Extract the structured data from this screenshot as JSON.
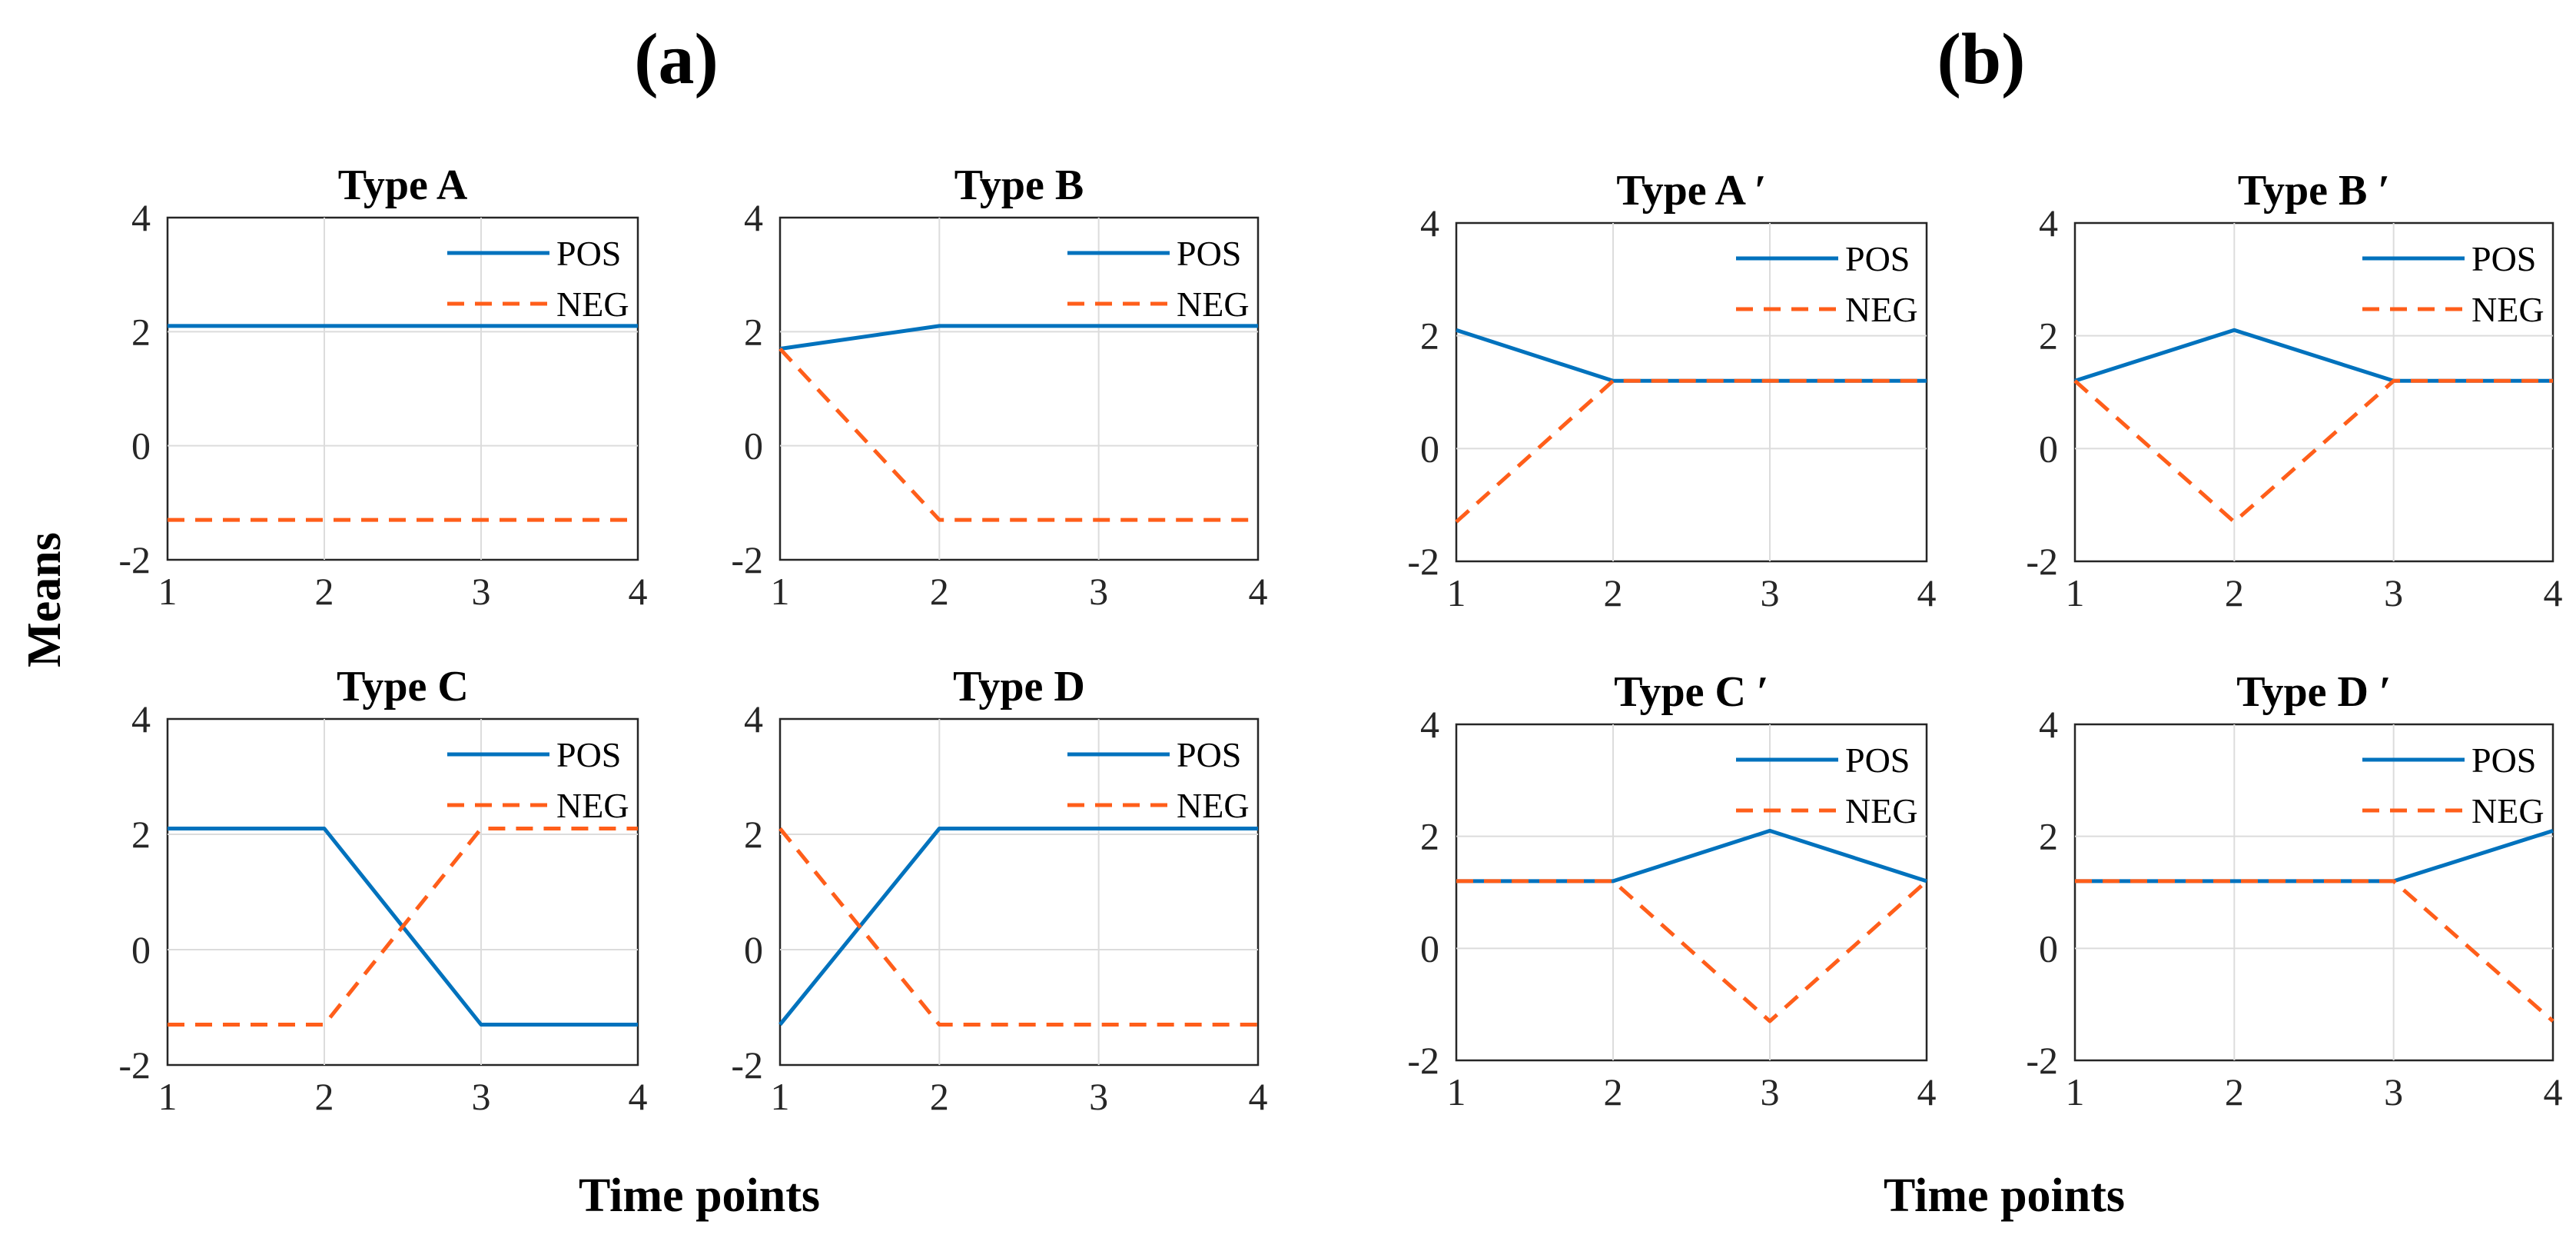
{
  "figure": {
    "panel_labels": [
      "(a)",
      "(b)"
    ],
    "ylabel": "Means",
    "xlabel_left": "Time points",
    "xlabel_right": "Time points"
  },
  "colors": {
    "POS": "#0072BD",
    "NEG": "#FF5E1A"
  },
  "chart_data": [
    {
      "type": "line",
      "title": "Type A",
      "x": [
        1,
        2,
        3,
        4
      ],
      "xlim": [
        1,
        4
      ],
      "ylim": [
        -2,
        4
      ],
      "xticks": [
        1,
        2,
        3,
        4
      ],
      "yticks": [
        -2,
        0,
        2,
        4
      ],
      "grid": true,
      "legend": "top-right",
      "series": [
        {
          "name": "POS",
          "style": "solid",
          "values": [
            2.1,
            2.1,
            2.1,
            2.1
          ]
        },
        {
          "name": "NEG",
          "style": "dashed",
          "values": [
            -1.3,
            -1.3,
            -1.3,
            -1.3
          ]
        }
      ]
    },
    {
      "type": "line",
      "title": "Type B",
      "x": [
        1,
        2,
        3,
        4
      ],
      "xlim": [
        1,
        4
      ],
      "ylim": [
        -2,
        4
      ],
      "xticks": [
        1,
        2,
        3,
        4
      ],
      "yticks": [
        -2,
        0,
        2,
        4
      ],
      "grid": true,
      "legend": "top-right",
      "series": [
        {
          "name": "POS",
          "style": "solid",
          "values": [
            1.7,
            2.1,
            2.1,
            2.1
          ]
        },
        {
          "name": "NEG",
          "style": "dashed",
          "values": [
            1.7,
            -1.3,
            -1.3,
            -1.3
          ]
        }
      ]
    },
    {
      "type": "line",
      "title": "Type C",
      "x": [
        1,
        2,
        3,
        4
      ],
      "xlim": [
        1,
        4
      ],
      "ylim": [
        -2,
        4
      ],
      "xticks": [
        1,
        2,
        3,
        4
      ],
      "yticks": [
        -2,
        0,
        2,
        4
      ],
      "grid": true,
      "legend": "top-right",
      "series": [
        {
          "name": "POS",
          "style": "solid",
          "values": [
            2.1,
            2.1,
            -1.3,
            -1.3
          ]
        },
        {
          "name": "NEG",
          "style": "dashed",
          "values": [
            -1.3,
            -1.3,
            2.1,
            2.1
          ]
        }
      ]
    },
    {
      "type": "line",
      "title": "Type D",
      "x": [
        1,
        2,
        3,
        4
      ],
      "xlim": [
        1,
        4
      ],
      "ylim": [
        -2,
        4
      ],
      "xticks": [
        1,
        2,
        3,
        4
      ],
      "yticks": [
        -2,
        0,
        2,
        4
      ],
      "grid": true,
      "legend": "top-right",
      "series": [
        {
          "name": "POS",
          "style": "solid",
          "values": [
            -1.3,
            2.1,
            2.1,
            2.1
          ]
        },
        {
          "name": "NEG",
          "style": "dashed",
          "values": [
            2.1,
            -1.3,
            -1.3,
            -1.3
          ]
        }
      ]
    },
    {
      "type": "line",
      "title": "Type A ′",
      "x": [
        1,
        2,
        3,
        4
      ],
      "xlim": [
        1,
        4
      ],
      "ylim": [
        -2,
        4
      ],
      "xticks": [
        1,
        2,
        3,
        4
      ],
      "yticks": [
        -2,
        0,
        2,
        4
      ],
      "grid": true,
      "legend": "top-right",
      "series": [
        {
          "name": "POS",
          "style": "solid",
          "values": [
            2.1,
            1.2,
            1.2,
            1.2
          ]
        },
        {
          "name": "NEG",
          "style": "dashed",
          "values": [
            -1.3,
            1.2,
            1.2,
            1.2
          ]
        }
      ]
    },
    {
      "type": "line",
      "title": "Type B ′",
      "x": [
        1,
        2,
        3,
        4
      ],
      "xlim": [
        1,
        4
      ],
      "ylim": [
        -2,
        4
      ],
      "xticks": [
        1,
        2,
        3,
        4
      ],
      "yticks": [
        -2,
        0,
        2,
        4
      ],
      "grid": true,
      "legend": "top-right",
      "series": [
        {
          "name": "POS",
          "style": "solid",
          "values": [
            1.2,
            2.1,
            1.2,
            1.2
          ]
        },
        {
          "name": "NEG",
          "style": "dashed",
          "values": [
            1.2,
            -1.3,
            1.2,
            1.2
          ]
        }
      ]
    },
    {
      "type": "line",
      "title": "Type C ′",
      "x": [
        1,
        2,
        3,
        4
      ],
      "xlim": [
        1,
        4
      ],
      "ylim": [
        -2,
        4
      ],
      "xticks": [
        1,
        2,
        3,
        4
      ],
      "yticks": [
        -2,
        0,
        2,
        4
      ],
      "grid": true,
      "legend": "top-right",
      "series": [
        {
          "name": "POS",
          "style": "solid",
          "values": [
            1.2,
            1.2,
            2.1,
            1.2
          ]
        },
        {
          "name": "NEG",
          "style": "dashed",
          "values": [
            1.2,
            1.2,
            -1.3,
            1.2
          ]
        }
      ]
    },
    {
      "type": "line",
      "title": "Type D ′",
      "x": [
        1,
        2,
        3,
        4
      ],
      "xlim": [
        1,
        4
      ],
      "ylim": [
        -2,
        4
      ],
      "xticks": [
        1,
        2,
        3,
        4
      ],
      "yticks": [
        -2,
        0,
        2,
        4
      ],
      "grid": true,
      "legend": "top-right",
      "series": [
        {
          "name": "POS",
          "style": "solid",
          "values": [
            1.2,
            1.2,
            1.2,
            2.1
          ]
        },
        {
          "name": "NEG",
          "style": "dashed",
          "values": [
            1.2,
            1.2,
            1.2,
            -1.3
          ]
        }
      ]
    }
  ]
}
